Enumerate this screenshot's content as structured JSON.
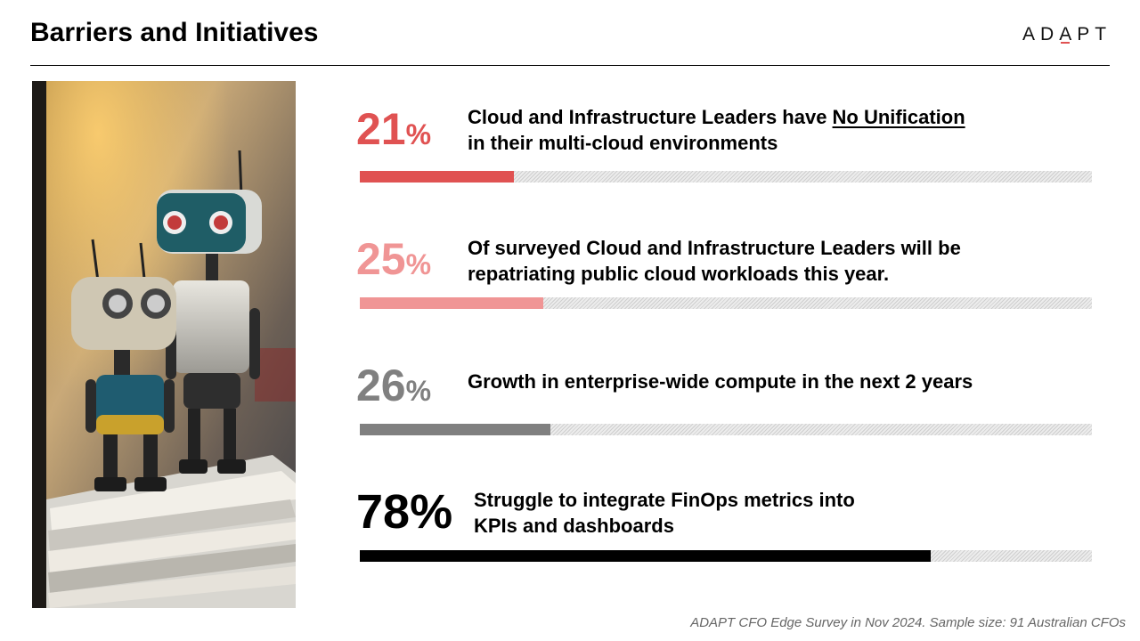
{
  "header": {
    "title": "Barriers and Initiatives",
    "logo_prefix": "AD",
    "logo_caret": "A",
    "logo_suffix": "PT"
  },
  "stats": [
    {
      "num": "21",
      "sign": "%",
      "line1_pre": "Cloud and Infrastructure Leaders have ",
      "line1_u": "No Unification",
      "line2": "in their multi-cloud environments",
      "value": 0.21,
      "color": "#e05252"
    },
    {
      "num": "25",
      "sign": "%",
      "line1": "Of surveyed Cloud and Infrastructure Leaders will be",
      "line2": "repatriating public cloud workloads this year.",
      "value": 0.25,
      "color": "#f09595"
    },
    {
      "num": "26",
      "sign": "%",
      "line1": "Growth in enterprise-wide compute in the next 2 years",
      "value": 0.26,
      "color": "#808080"
    },
    {
      "num": "78%",
      "line1": "Struggle to integrate FinOps metrics into",
      "line2": "KPIs and dashboards",
      "value": 0.78,
      "color": "#000000"
    }
  ],
  "footer": {
    "text": "ADAPT CFO Edge Survey in Nov 2024. Sample size: 91 Australian CFOs"
  }
}
